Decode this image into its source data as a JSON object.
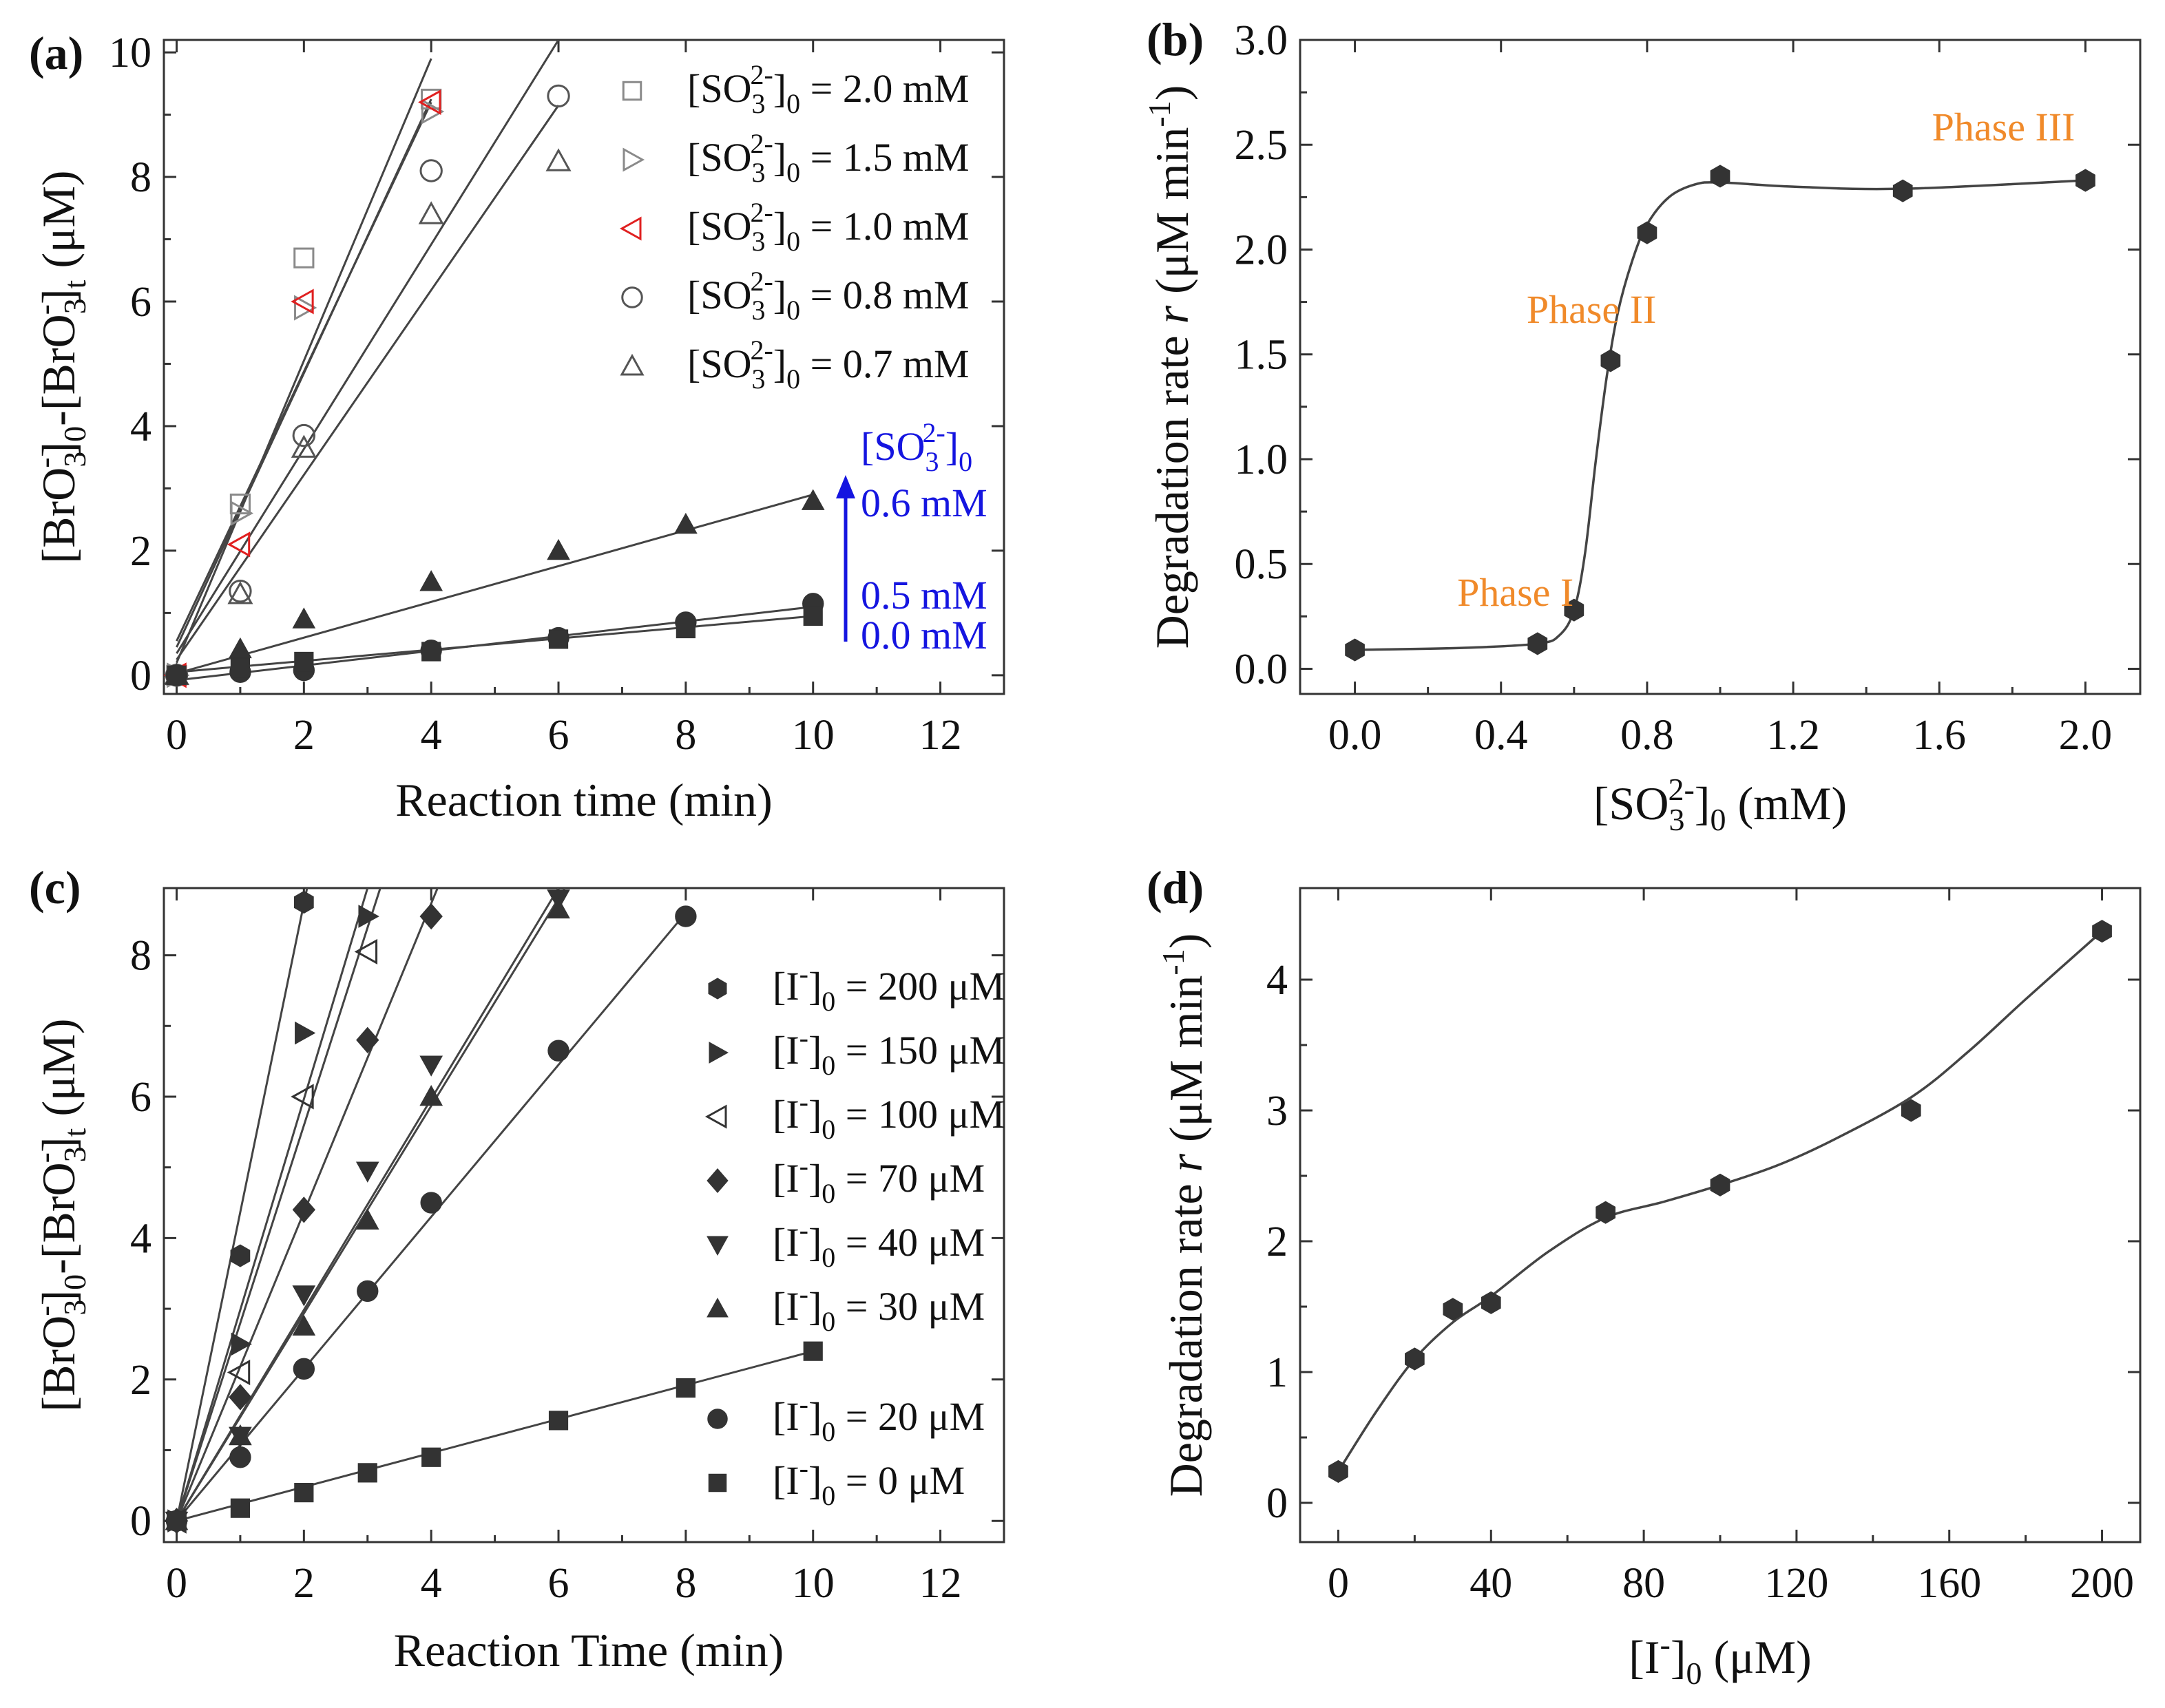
{
  "panels": {
    "a": {
      "tag": "(a)",
      "xlabel": "Reaction time (min)",
      "ylabel_parts": [
        "[BrO",
        "3",
        "-",
        "]",
        "0",
        "-[BrO",
        "3",
        "-",
        "]",
        "t",
        " (μM)"
      ]
    },
    "b": {
      "tag": "(b)",
      "xlabel_parts": [
        "[SO",
        "3",
        "2-",
        "]",
        "0",
        " (mM)"
      ],
      "ylabel_parts": [
        "Degradation rate ",
        "r",
        " (μM min",
        "-1",
        ")"
      ],
      "phase_labels": [
        "Phase I",
        "Phase II",
        "Phase III"
      ]
    },
    "c": {
      "tag": "(c)",
      "xlabel": "Reaction Time (min)",
      "ylabel_parts": [
        "[BrO",
        "3",
        "-",
        "]",
        "0",
        "-[BrO",
        "3",
        "-",
        "]",
        "t",
        " (μM)"
      ]
    },
    "d": {
      "tag": "(d)",
      "xlabel_parts": [
        "[I",
        "-",
        "]",
        "0",
        " (μM)"
      ],
      "ylabel_parts": [
        "Degradation rate ",
        "r",
        " (μM min",
        "-1",
        ")"
      ]
    }
  },
  "annotation_a": {
    "arrow_title_parts": [
      "[SO",
      "3",
      "2-",
      "]",
      "0"
    ],
    "labels": [
      "0.6 mM",
      "0.5 mM",
      "0.0 mM"
    ]
  },
  "chart_data": [
    {
      "id": "a",
      "type": "scatter",
      "xlabel": "Reaction time (min)",
      "ylabel": "[BrO3-]0-[BrO3-]t (μM)",
      "xlim": [
        -0.2,
        13
      ],
      "ylim": [
        -0.3,
        10.2
      ],
      "xticks": [
        0,
        2,
        4,
        6,
        8,
        10,
        12
      ],
      "yticks": [
        0,
        2,
        4,
        6,
        8,
        10
      ],
      "legend_position": "top-right",
      "series": [
        {
          "name": "[SO3 2-]0 = 2.0 mM",
          "legend": {
            "sym": "[SO",
            "sub": "3",
            "sup": "2-",
            "tail": "]",
            "sub2": "0",
            "eq": " = 2.0 mM"
          },
          "marker": "square-open",
          "color": "#8a8a8a",
          "x": [
            0,
            1,
            2,
            4
          ],
          "y": [
            0,
            2.75,
            6.7,
            9.25
          ],
          "fit": [
            [
              0,
              0.2
            ],
            [
              4,
              9.9
            ]
          ]
        },
        {
          "name": "[SO3 2-]0 = 1.5 mM",
          "legend": {
            "sym": "[SO",
            "sub": "3",
            "sup": "2-",
            "tail": "]",
            "sub2": "0",
            "eq": " = 1.5 mM"
          },
          "marker": "triangle-right-open",
          "color": "#8a8a8a",
          "x": [
            0,
            1,
            2,
            4
          ],
          "y": [
            0,
            2.6,
            5.9,
            9.05
          ],
          "fit": [
            [
              0,
              0.45
            ],
            [
              4,
              9.25
            ]
          ]
        },
        {
          "name": "[SO3 2-]0 = 1.0 mM",
          "legend": {
            "sym": "[SO",
            "sub": "3",
            "sup": "2-",
            "tail": "]",
            "sub2": "0",
            "eq": " = 1.0 mM"
          },
          "marker": "triangle-left-open",
          "color": "#e02020",
          "x": [
            0,
            1,
            2,
            4
          ],
          "y": [
            0,
            2.1,
            6.0,
            9.2
          ],
          "fit": [
            [
              0,
              0.55
            ],
            [
              4,
              9.2
            ]
          ]
        },
        {
          "name": "[SO3 2-]0 = 0.8 mM",
          "legend": {
            "sym": "[SO",
            "sub": "3",
            "sup": "2-",
            "tail": "]",
            "sub2": "0",
            "eq": " = 0.8 mM"
          },
          "marker": "circle-open",
          "color": "#555555",
          "x": [
            0,
            1,
            2,
            4,
            6
          ],
          "y": [
            0,
            1.35,
            3.85,
            8.1,
            9.3
          ],
          "fit": [
            [
              0,
              0.35
            ],
            [
              6,
              10.2
            ]
          ]
        },
        {
          "name": "[SO3 2-]0 = 0.7 mM",
          "legend": {
            "sym": "[SO",
            "sub": "3",
            "sup": "2-",
            "tail": "]",
            "sub2": "0",
            "eq": " = 0.7 mM"
          },
          "marker": "triangle-up-open",
          "color": "#555555",
          "x": [
            0,
            1,
            2,
            4,
            6
          ],
          "y": [
            0,
            1.3,
            3.65,
            7.4,
            8.25
          ],
          "fit": [
            [
              0,
              0.25
            ],
            [
              6,
              9.15
            ]
          ]
        },
        {
          "name": "0.6 mM",
          "marker": "triangle-up",
          "color": "#333333",
          "x": [
            0,
            1,
            2,
            4,
            6,
            8,
            10
          ],
          "y": [
            0,
            0.42,
            0.9,
            1.5,
            2.0,
            2.42,
            2.8
          ],
          "fit": [
            [
              0,
              0.03
            ],
            [
              10,
              2.9
            ]
          ]
        },
        {
          "name": "0.5 mM",
          "marker": "circle",
          "color": "#333333",
          "x": [
            0,
            1,
            2,
            4,
            6,
            8,
            10
          ],
          "y": [
            0,
            0.05,
            0.08,
            0.4,
            0.6,
            0.85,
            1.15
          ],
          "fit": [
            [
              0,
              -0.08
            ],
            [
              10,
              1.1
            ]
          ]
        },
        {
          "name": "0.0 mM",
          "marker": "square",
          "color": "#333333",
          "x": [
            0,
            1,
            2,
            4,
            6,
            8,
            10
          ],
          "y": [
            0,
            0.12,
            0.22,
            0.38,
            0.58,
            0.75,
            0.95
          ],
          "fit": [
            [
              0,
              0.05
            ],
            [
              10,
              0.95
            ]
          ]
        }
      ]
    },
    {
      "id": "b",
      "type": "scatter",
      "xlabel": "[SO3 2-]0 (mM)",
      "ylabel": "Degradation rate r (μM min-1)",
      "xlim": [
        -0.15,
        2.15
      ],
      "ylim": [
        -0.12,
        3.0
      ],
      "xticks": [
        0.0,
        0.4,
        0.8,
        1.2,
        1.6,
        2.0
      ],
      "yticks": [
        0.0,
        0.5,
        1.0,
        1.5,
        2.0,
        2.5,
        3.0
      ],
      "tick_decimals": 1,
      "series": [
        {
          "name": "rate",
          "marker": "hexagon",
          "color": "#333333",
          "x": [
            0.0,
            0.5,
            0.6,
            0.7,
            0.8,
            1.0,
            1.5,
            2.0
          ],
          "y": [
            0.09,
            0.12,
            0.28,
            1.47,
            2.08,
            2.35,
            2.28,
            2.33
          ]
        }
      ],
      "curve": {
        "x": [
          0.0,
          0.3,
          0.5,
          0.56,
          0.6,
          0.63,
          0.66,
          0.69,
          0.72,
          0.76,
          0.8,
          0.86,
          0.93,
          1.0,
          1.2,
          1.5,
          2.0
        ],
        "y": [
          0.09,
          0.1,
          0.12,
          0.16,
          0.28,
          0.55,
          1.0,
          1.4,
          1.7,
          1.95,
          2.12,
          2.25,
          2.31,
          2.32,
          2.3,
          2.29,
          2.33
        ]
      },
      "phase_positions": [
        {
          "x": 0.28,
          "y": 0.3
        },
        {
          "x": 0.47,
          "y": 1.65
        },
        {
          "x": 1.58,
          "y": 2.52
        }
      ]
    },
    {
      "id": "c",
      "type": "scatter",
      "xlabel": "Reaction Time (min)",
      "ylabel": "[BrO3-]0-[BrO3-]t (μM)",
      "xlim": [
        -0.2,
        13
      ],
      "ylim": [
        -0.3,
        8.95
      ],
      "xticks": [
        0,
        2,
        4,
        6,
        8,
        10,
        12
      ],
      "yticks": [
        0,
        2,
        4,
        6,
        8
      ],
      "legend_position": "right",
      "series": [
        {
          "name": "[I-]0 = 200 μM",
          "legend": {
            "sym": "[I",
            "sup": "-",
            "tail": "]",
            "sub2": "0",
            "eq": " = 200 μM"
          },
          "marker": "hexagon",
          "color": "#333333",
          "x": [
            0,
            1,
            2
          ],
          "y": [
            0,
            3.75,
            8.75
          ],
          "fit": [
            [
              0,
              0
            ],
            [
              2.05,
              8.95
            ]
          ]
        },
        {
          "name": "[I-]0 = 150 μM",
          "legend": {
            "sym": "[I",
            "sup": "-",
            "tail": "]",
            "sub2": "0",
            "eq": " = 150 μM"
          },
          "marker": "triangle-right",
          "color": "#333333",
          "x": [
            0,
            1,
            2,
            3
          ],
          "y": [
            0,
            2.5,
            6.9,
            8.55
          ],
          "fit": [
            [
              0,
              0
            ],
            [
              3.0,
              8.95
            ]
          ]
        },
        {
          "name": "[I-]0 = 100 μM",
          "legend": {
            "sym": "[I",
            "sup": "-",
            "tail": "]",
            "sub2": "0",
            "eq": " = 100 μM"
          },
          "marker": "triangle-left-open",
          "color": "#333333",
          "x": [
            0,
            1,
            2,
            3
          ],
          "y": [
            0,
            2.1,
            6.0,
            8.05
          ],
          "fit": [
            [
              0,
              0
            ],
            [
              3.2,
              8.95
            ]
          ]
        },
        {
          "name": "[I-]0 = 70 μM",
          "legend": {
            "sym": "[I",
            "sup": "-",
            "tail": "]",
            "sub2": "0",
            "eq": " = 70 μM"
          },
          "marker": "diamond",
          "color": "#333333",
          "x": [
            0,
            1,
            2,
            3,
            4
          ],
          "y": [
            0,
            1.75,
            4.4,
            6.8,
            8.55
          ],
          "fit": [
            [
              0,
              0
            ],
            [
              4.1,
              8.95
            ]
          ]
        },
        {
          "name": "[I-]0 = 40 μM",
          "legend": {
            "sym": "[I",
            "sup": "-",
            "tail": "]",
            "sub2": "0",
            "eq": " = 40 μM"
          },
          "marker": "triangle-down",
          "color": "#333333",
          "x": [
            0,
            1,
            2,
            3,
            4,
            6
          ],
          "y": [
            0,
            1.2,
            3.2,
            4.95,
            6.45,
            8.8
          ],
          "fit": [
            [
              0,
              0
            ],
            [
              6.0,
              8.95
            ]
          ]
        },
        {
          "name": "[I-]0 = 30 μM",
          "legend": {
            "sym": "[I",
            "sup": "-",
            "tail": "]",
            "sub2": "0",
            "eq": " = 30 μM"
          },
          "marker": "triangle-up",
          "color": "#333333",
          "x": [
            0,
            1,
            2,
            3,
            4,
            6
          ],
          "y": [
            0,
            1.2,
            2.75,
            4.25,
            6.0,
            8.65
          ],
          "fit": [
            [
              0,
              0
            ],
            [
              6.1,
              8.95
            ]
          ]
        },
        {
          "name": "[I-]0 = 20 μM",
          "legend": {
            "sym": "[I",
            "sup": "-",
            "tail": "]",
            "sub2": "0",
            "eq": " = 20 μM"
          },
          "marker": "circle",
          "color": "#333333",
          "x": [
            0,
            1,
            2,
            3,
            4,
            6,
            8
          ],
          "y": [
            0,
            0.9,
            2.15,
            3.25,
            4.5,
            6.65,
            8.55
          ],
          "fit": [
            [
              0,
              0
            ],
            [
              8.0,
              8.6
            ]
          ]
        },
        {
          "name": "[I-]0 = 0 μM",
          "legend": {
            "sym": "[I",
            "sup": "-",
            "tail": "]",
            "sub2": "0",
            "eq": " = 0 μM"
          },
          "marker": "square",
          "color": "#333333",
          "x": [
            0,
            1,
            2,
            3,
            4,
            6,
            8,
            10
          ],
          "y": [
            0,
            0.18,
            0.4,
            0.68,
            0.9,
            1.42,
            1.88,
            2.4
          ],
          "fit": [
            [
              0,
              0
            ],
            [
              10,
              2.4
            ]
          ]
        }
      ]
    },
    {
      "id": "d",
      "type": "scatter",
      "xlabel": "[I-]0 (μM)",
      "ylabel": "Degradation rate r (μM min-1)",
      "xlim": [
        -10,
        210
      ],
      "ylim": [
        -0.3,
        4.7
      ],
      "xticks": [
        0,
        40,
        80,
        120,
        160,
        200
      ],
      "yticks": [
        0,
        1,
        2,
        3,
        4
      ],
      "series": [
        {
          "name": "rate",
          "marker": "hexagon",
          "color": "#333333",
          "x": [
            0,
            20,
            30,
            40,
            70,
            100,
            150,
            200
          ],
          "y": [
            0.24,
            1.1,
            1.48,
            1.53,
            2.22,
            2.43,
            3.0,
            4.37
          ]
        }
      ],
      "curve": {
        "x": [
          0,
          10,
          20,
          30,
          40,
          55,
          70,
          85,
          100,
          115,
          130,
          150,
          165,
          180,
          200
        ],
        "y": [
          0.24,
          0.7,
          1.1,
          1.38,
          1.58,
          1.92,
          2.18,
          2.3,
          2.43,
          2.58,
          2.78,
          3.1,
          3.45,
          3.85,
          4.37
        ]
      }
    }
  ]
}
